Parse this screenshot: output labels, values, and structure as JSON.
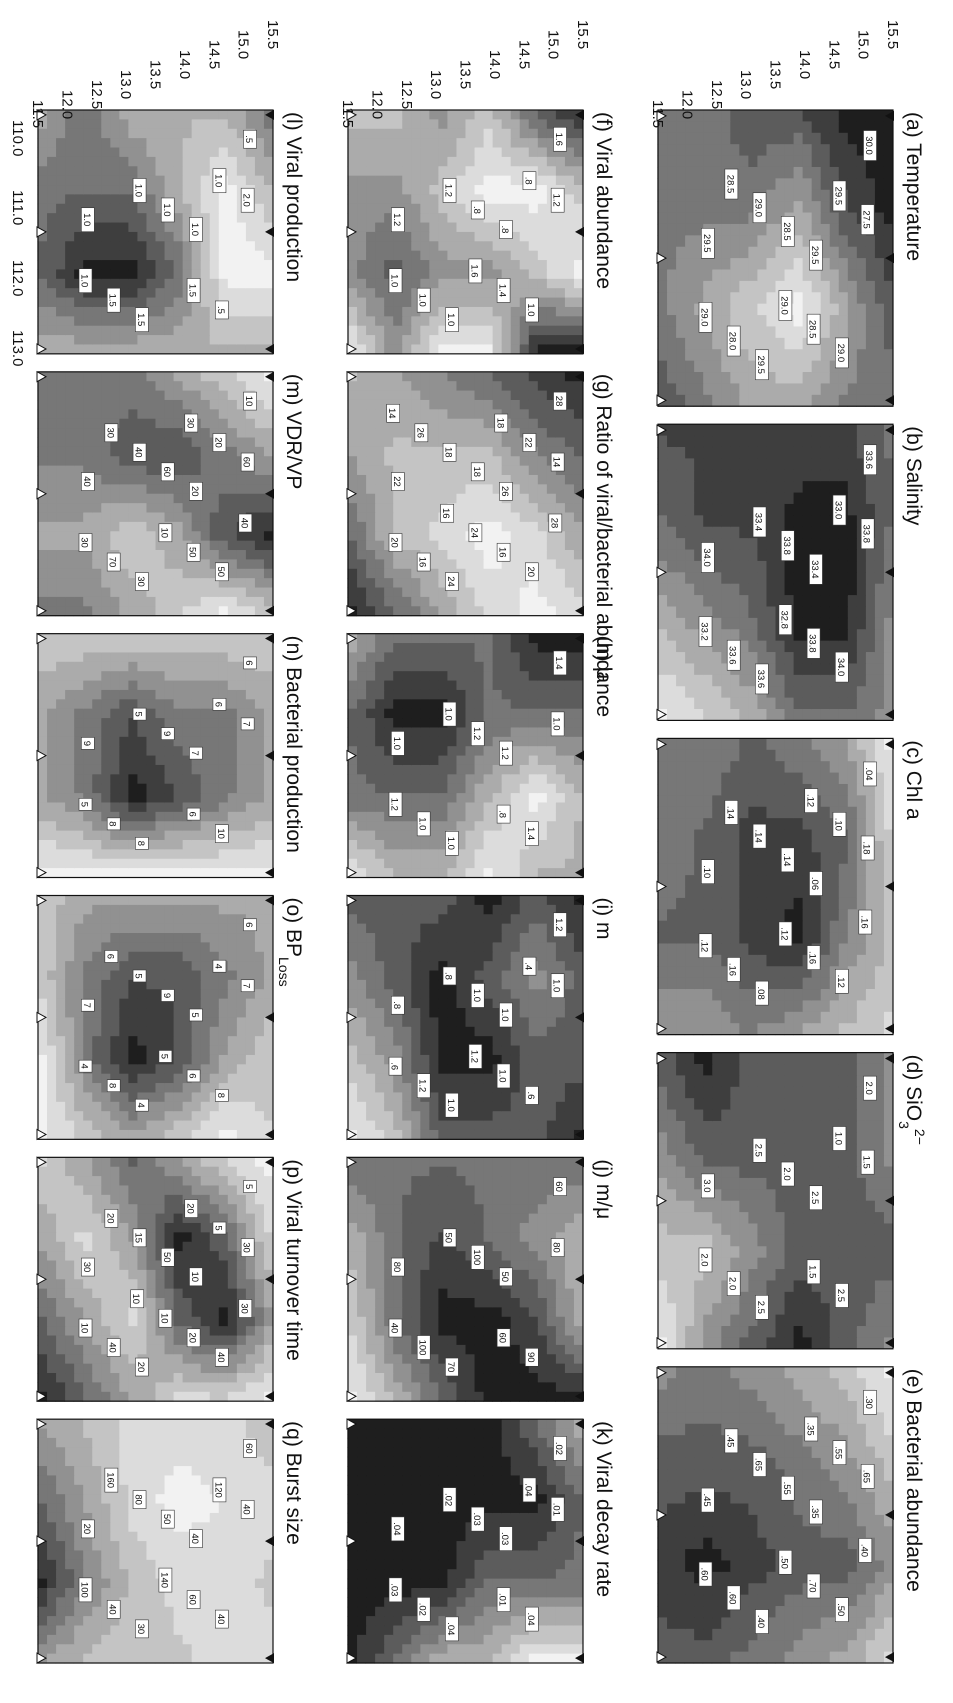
{
  "figure": {
    "x_ticks": [
      "110.0",
      "111.0",
      "112.0",
      "113.0"
    ],
    "y_ticks": [
      "15.5",
      "15.0",
      "14.5",
      "14.0",
      "13.5",
      "13.0",
      "12.5",
      "12.0",
      "11.5"
    ],
    "shade_colors": [
      "#f2f2f2",
      "#dcdcdc",
      "#c4c4c4",
      "#ababab",
      "#919191",
      "#777777",
      "#5c5c5c",
      "#3e3e3e",
      "#1e1e1e"
    ]
  },
  "chart_data": [
    {
      "type": "heatmap",
      "title": "(a) Temperature",
      "grid_values": [
        [
          30.0,
          30.0,
          29.5,
          29.0
        ],
        [
          30.0,
          29.5,
          28.5,
          29.0
        ],
        [
          29.5,
          28.5,
          27.5,
          28.5
        ],
        [
          29.5,
          29.0,
          28.0,
          28.5
        ],
        [
          29.0,
          29.0,
          28.5,
          29.0
        ],
        [
          29.0,
          29.0,
          29.0,
          29.5
        ]
      ],
      "contour_labels": [
        "30.0",
        "29.5",
        "29.5",
        "29.5",
        "29.0",
        "28.5",
        "28.0",
        "27.5",
        "28.5",
        "29.0",
        "29.0",
        "29.5",
        "29.0",
        "28.5"
      ]
    },
    {
      "type": "heatmap",
      "title": "(b) Salinity",
      "grid_values": [
        [
          33.6,
          33.6,
          33.4,
          33.4
        ],
        [
          33.8,
          34.0,
          34.0,
          33.6
        ],
        [
          33.8,
          34.0,
          34.0,
          33.6
        ],
        [
          33.8,
          33.8,
          33.6,
          33.2
        ],
        [
          33.8,
          33.8,
          33.4,
          33.0
        ],
        [
          33.8,
          33.6,
          33.2,
          32.8
        ]
      ],
      "contour_labels": [
        "33.6",
        "33.4",
        "33.6",
        "34.0",
        "34.0",
        "33.8",
        "33.6",
        "33.8",
        "33.8",
        "33.4",
        "33.2",
        "33.0",
        "32.8"
      ]
    },
    {
      "type": "heatmap",
      "title": "(c) Chl a",
      "grid_values": [
        [
          0.04,
          0.06,
          0.08,
          0.06
        ],
        [
          0.1,
          0.14,
          0.12,
          0.08
        ],
        [
          0.12,
          0.16,
          0.18,
          0.1
        ],
        [
          0.14,
          0.16,
          0.16,
          0.12
        ],
        [
          0.12,
          0.14,
          0.14,
          0.1
        ],
        [
          0.12,
          0.12,
          0.14,
          0.1
        ]
      ],
      "contour_labels": [
        ".04",
        ".06",
        ".08",
        ".10",
        ".12",
        ".14",
        ".16",
        ".18",
        ".16",
        ".14",
        ".12",
        ".10",
        ".12",
        ".14",
        ".16",
        ".12"
      ]
    },
    {
      "type": "heatmap",
      "title": "(d) SiO3^2−",
      "grid_values": [
        [
          2.0,
          2.0,
          2.5,
          2.0
        ],
        [
          2.5,
          2.5,
          2.5,
          2.5
        ],
        [
          2.5,
          2.5,
          2.5,
          3.0
        ],
        [
          2.5,
          2.5,
          2.0,
          2.5
        ],
        [
          3.0,
          2.5,
          1.5,
          2.0
        ],
        [
          2.5,
          2.0,
          1.5,
          1.0
        ]
      ],
      "contour_labels": [
        "2.0",
        "2.5",
        "2.5",
        "3.0",
        "2.5",
        "2.0",
        "2.0",
        "1.5",
        "1.5",
        "2.5",
        "2.0",
        "1.0"
      ]
    },
    {
      "type": "heatmap",
      "title": "(e) Bacterial abundance",
      "grid_values": [
        [
          0.3,
          0.4,
          0.5,
          0.35
        ],
        [
          0.4,
          0.5,
          0.6,
          0.45
        ],
        [
          0.45,
          0.55,
          0.6,
          0.5
        ],
        [
          0.5,
          0.6,
          0.65,
          0.55
        ],
        [
          0.55,
          0.6,
          0.7,
          0.6
        ],
        [
          0.5,
          0.6,
          0.65,
          0.6
        ]
      ],
      "contour_labels": [
        ".30",
        ".35",
        ".40",
        ".45",
        ".50",
        ".55",
        ".60",
        ".65",
        ".70",
        ".65",
        ".60",
        ".55",
        ".50",
        ".45",
        ".40",
        ".35"
      ]
    },
    {
      "type": "heatmap",
      "title": "(f) Viral abundance",
      "grid_values": [
        [
          1.6,
          1.0,
          0.8,
          1.6
        ],
        [
          1.4,
          0.8,
          1.0,
          1.6
        ],
        [
          1.0,
          0.8,
          1.2,
          0.8
        ],
        [
          1.2,
          1.0,
          1.2,
          0.8
        ],
        [
          1.0,
          1.2,
          1.4,
          1.2
        ],
        [
          1.0,
          1.2,
          1.2,
          0.8
        ]
      ],
      "contour_labels": [
        "1.6",
        ".8",
        "1.0",
        "1.2",
        "1.0",
        ".8",
        "1.0",
        "1.2",
        "1.4",
        "1.2",
        "1.0",
        ".8",
        "1.6"
      ]
    },
    {
      "type": "heatmap",
      "title": "(g) Ratio of viral/bacterial abundance",
      "grid_values": [
        [
          28,
          24,
          20,
          16
        ],
        [
          26,
          22,
          16,
          14
        ],
        [
          24,
          18,
          14,
          16
        ],
        [
          22,
          18,
          16,
          20
        ],
        [
          20,
          18,
          18,
          24
        ],
        [
          18,
          20,
          24,
          28
        ]
      ],
      "contour_labels": [
        "28",
        "26",
        "24",
        "22",
        "20",
        "18",
        "16",
        "14",
        "16",
        "18",
        "20",
        "22",
        "24",
        "26",
        "28",
        "18",
        "16",
        "14"
      ]
    },
    {
      "type": "heatmap",
      "title": "(h) μ",
      "grid_values": [
        [
          1.4,
          1.2,
          1.0,
          1.0
        ],
        [
          1.4,
          1.2,
          0.8,
          1.0
        ],
        [
          1.2,
          1.2,
          1.0,
          0.8
        ],
        [
          1.2,
          1.4,
          1.2,
          1.0
        ],
        [
          1.2,
          1.4,
          1.2,
          1.0
        ],
        [
          1.0,
          1.2,
          1.2,
          0.8
        ]
      ],
      "contour_labels": [
        "1.4",
        "1.2",
        "1.0",
        "1.0",
        "1.4",
        "1.2",
        "1.0",
        "1.0",
        ".8",
        "1.0",
        "1.2"
      ]
    },
    {
      "type": "heatmap",
      "title": "(i) m",
      "grid_values": [
        [
          1.2,
          1.0,
          1.0,
          1.2
        ],
        [
          1.0,
          0.8,
          1.0,
          1.0
        ],
        [
          1.2,
          1.0,
          1.2,
          1.0
        ],
        [
          1.0,
          1.2,
          1.2,
          1.0
        ],
        [
          1.0,
          1.0,
          0.8,
          0.6
        ],
        [
          1.0,
          0.8,
          0.6,
          0.4
        ]
      ],
      "contour_labels": [
        "1.2",
        "1.0",
        "1.0",
        ".8",
        ".6",
        "1.0",
        "1.2",
        "1.0",
        "1.0",
        ".8",
        ".6",
        ".4",
        "1.2"
      ]
    },
    {
      "type": "heatmap",
      "title": "(j) m/μ",
      "grid_values": [
        [
          80,
          60,
          60,
          100
        ],
        [
          80,
          70,
          90,
          100
        ],
        [
          80,
          80,
          100,
          100
        ],
        [
          80,
          90,
          100,
          80
        ],
        [
          80,
          80,
          80,
          60
        ],
        [
          80,
          60,
          50,
          40
        ]
      ],
      "contour_labels": [
        "60",
        "50",
        "70",
        "80",
        "90",
        "100",
        "100",
        "80",
        "60",
        "50",
        "40"
      ]
    },
    {
      "type": "heatmap",
      "title": "(k) Viral decay rate",
      "grid_values": [
        [
          0.02,
          0.03,
          0.03,
          0.01
        ],
        [
          0.03,
          0.04,
          0.03,
          0.01
        ],
        [
          0.04,
          0.04,
          0.03,
          0.02
        ],
        [
          0.04,
          0.04,
          0.04,
          0.02
        ],
        [
          0.04,
          0.04,
          0.04,
          0.03
        ],
        [
          0.04,
          0.04,
          0.04,
          0.04
        ]
      ],
      "contour_labels": [
        ".02",
        ".03",
        ".04",
        ".04",
        ".04",
        ".03",
        ".02",
        ".01",
        ".01",
        ".02",
        ".03",
        ".04"
      ]
    },
    {
      "type": "heatmap",
      "title": "(l) Viral production",
      "grid_values": [
        [
          1.5,
          1.0,
          0.5,
          1.0
        ],
        [
          1.0,
          0.5,
          0.5,
          1.0
        ],
        [
          1.0,
          1.0,
          1.5,
          1.0
        ],
        [
          1.0,
          1.5,
          2.0,
          1.0
        ],
        [
          1.5,
          1.5,
          2.0,
          1.0
        ],
        [
          1.0,
          1.5,
          1.5,
          1.0
        ]
      ],
      "contour_labels": [
        ".5",
        "1.0",
        "1.5",
        "1.0",
        ".5",
        "1.0",
        "1.5",
        "2.0",
        "1.5",
        "1.0",
        "1.0",
        "1.0"
      ]
    },
    {
      "type": "heatmap",
      "title": "(m) VDR/VP",
      "grid_values": [
        [
          10,
          30,
          60,
          20
        ],
        [
          20,
          40,
          50,
          10
        ],
        [
          30,
          50,
          30,
          20
        ],
        [
          40,
          50,
          20,
          30
        ],
        [
          40,
          40,
          30,
          40
        ],
        [
          40,
          40,
          30,
          40
        ]
      ],
      "contour_labels": [
        "10",
        "20",
        "30",
        "40",
        "50",
        "60",
        "70",
        "60",
        "50",
        "40",
        "30",
        "20",
        "10",
        "30",
        "40",
        "30"
      ]
    },
    {
      "type": "heatmap",
      "title": "(n) Bacterial production",
      "grid_values": [
        [
          6,
          7,
          7,
          5
        ],
        [
          6,
          8,
          8,
          5
        ],
        [
          6,
          8,
          9,
          5
        ],
        [
          6,
          9,
          10,
          5
        ],
        [
          6,
          8,
          8,
          5
        ],
        [
          6,
          7,
          7,
          5
        ]
      ],
      "contour_labels": [
        "6",
        "7",
        "8",
        "9",
        "10",
        "9",
        "8",
        "7",
        "6",
        "5",
        "5",
        "6"
      ]
    },
    {
      "type": "heatmap",
      "title": "(o) BP_Loss",
      "grid_values": [
        [
          6,
          6,
          5,
          5
        ],
        [
          6,
          7,
          6,
          4
        ],
        [
          6,
          8,
          8,
          5
        ],
        [
          6,
          8,
          9,
          6
        ],
        [
          6,
          7,
          7,
          5
        ],
        [
          5,
          5,
          4,
          4
        ]
      ],
      "contour_labels": [
        "6",
        "5",
        "4",
        "7",
        "8",
        "9",
        "8",
        "7",
        "6",
        "5",
        "4",
        "4",
        "5",
        "6"
      ]
    },
    {
      "type": "heatmap",
      "title": "(p) Viral turnover time",
      "grid_values": [
        [
          5,
          10,
          20,
          5
        ],
        [
          10,
          30,
          40,
          10
        ],
        [
          20,
          40,
          30,
          10
        ],
        [
          30,
          20,
          10,
          20
        ],
        [
          20,
          10,
          20,
          30
        ],
        [
          10,
          20,
          30,
          40
        ]
      ],
      "contour_labels": [
        "5",
        "10",
        "20",
        "30",
        "40",
        "50",
        "40",
        "30",
        "20",
        "15",
        "10",
        "5",
        "10",
        "20",
        "30",
        "20",
        "10"
      ]
    },
    {
      "type": "heatmap",
      "title": "(q) Burst size",
      "grid_values": [
        [
          60,
          40,
          50,
          40
        ],
        [
          40,
          30,
          40,
          40
        ],
        [
          40,
          20,
          40,
          50
        ],
        [
          40,
          40,
          60,
          50
        ],
        [
          60,
          80,
          100,
          60
        ],
        [
          80,
          120,
          160,
          80
        ]
      ],
      "contour_labels": [
        "60",
        "40",
        "30",
        "20",
        "40",
        "50",
        "40",
        "40",
        "60",
        "80",
        "100",
        "120",
        "140",
        "160"
      ]
    }
  ]
}
